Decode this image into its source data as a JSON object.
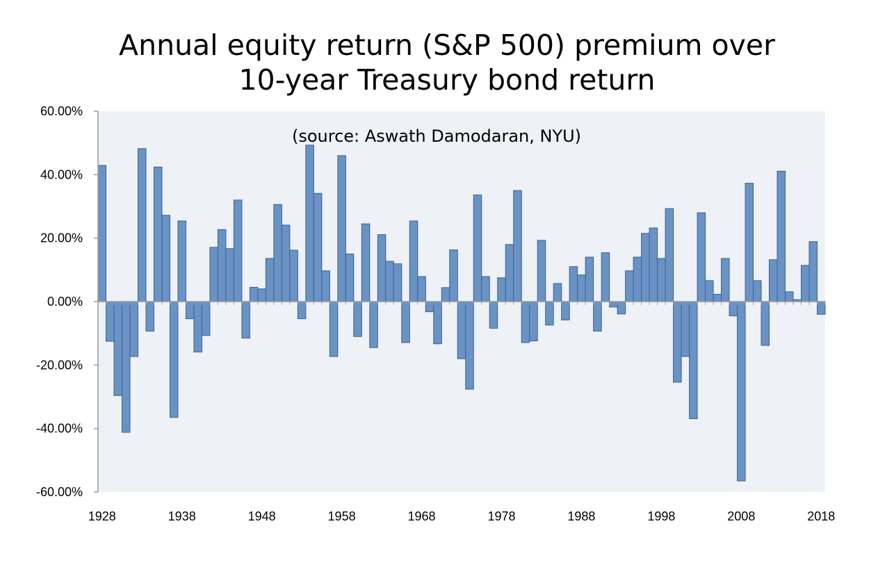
{
  "chart_data": {
    "type": "bar",
    "title_line1": "Annual equity return (S&P 500) premium over",
    "title_line2": "10-year Treasury bond return",
    "annotation": "(source: Aswath Damodaran, NYU)",
    "xlabel": "",
    "ylabel": "",
    "ylim": [
      -60,
      60
    ],
    "y_ticks": [
      "60.00%",
      "40.00%",
      "20.00%",
      "0.00%",
      "-20.00%",
      "-40.00%",
      "-60.00%"
    ],
    "y_tick_values": [
      60,
      40,
      20,
      0,
      -20,
      -40,
      -60
    ],
    "x_tick_labels": [
      "1928",
      "1938",
      "1948",
      "1958",
      "1968",
      "1978",
      "1988",
      "1998",
      "2008",
      "2018"
    ],
    "grid": false,
    "colors": {
      "bar_fill": "#6a93c5",
      "bar_stroke": "#3b5f8f",
      "plot_bg": "#eef1f6",
      "axis": "#999999"
    },
    "x": [
      1928,
      1929,
      1930,
      1931,
      1932,
      1933,
      1934,
      1935,
      1936,
      1937,
      1938,
      1939,
      1940,
      1941,
      1942,
      1943,
      1944,
      1945,
      1946,
      1947,
      1948,
      1949,
      1950,
      1951,
      1952,
      1953,
      1954,
      1955,
      1956,
      1957,
      1958,
      1959,
      1960,
      1961,
      1962,
      1963,
      1964,
      1965,
      1966,
      1967,
      1968,
      1969,
      1970,
      1971,
      1972,
      1973,
      1974,
      1975,
      1976,
      1977,
      1978,
      1979,
      1980,
      1981,
      1982,
      1983,
      1984,
      1985,
      1986,
      1987,
      1988,
      1989,
      1990,
      1991,
      1992,
      1993,
      1994,
      1995,
      1996,
      1997,
      1998,
      1999,
      2000,
      2001,
      2002,
      2003,
      2004,
      2005,
      2006,
      2007,
      2008,
      2009,
      2010,
      2011,
      2012,
      2013,
      2014,
      2015,
      2016,
      2017,
      2018
    ],
    "values": [
      42.9,
      -12.5,
      -29.6,
      -41.2,
      -17.3,
      48.2,
      -9.3,
      42.4,
      27.2,
      -36.5,
      25.4,
      -5.4,
      -15.9,
      -10.7,
      17.1,
      22.7,
      16.7,
      32.0,
      -11.5,
      4.5,
      4.0,
      13.6,
      30.6,
      24.1,
      16.2,
      -5.4,
      49.3,
      34.1,
      9.7,
      -17.3,
      46.0,
      15.0,
      -11.0,
      24.5,
      -14.5,
      21.1,
      12.7,
      11.9,
      -12.9,
      25.4,
      7.9,
      -3.2,
      -13.3,
      4.4,
      16.3,
      -18.0,
      -27.6,
      33.6,
      7.9,
      -8.4,
      7.5,
      18.0,
      35.0,
      -12.9,
      -12.4,
      19.3,
      -7.4,
      5.7,
      -5.8,
      11.0,
      8.4,
      14.0,
      -9.3,
      15.4,
      -1.7,
      -3.9,
      9.7,
      14.0,
      21.5,
      23.2,
      13.6,
      29.3,
      -25.4,
      -17.3,
      -36.9,
      28.0,
      6.6,
      2.3,
      13.6,
      -4.5,
      -56.5,
      37.3,
      6.6,
      -13.8,
      13.2,
      41.1,
      3.1,
      0.6,
      11.4,
      18.9,
      -4.0
    ]
  }
}
